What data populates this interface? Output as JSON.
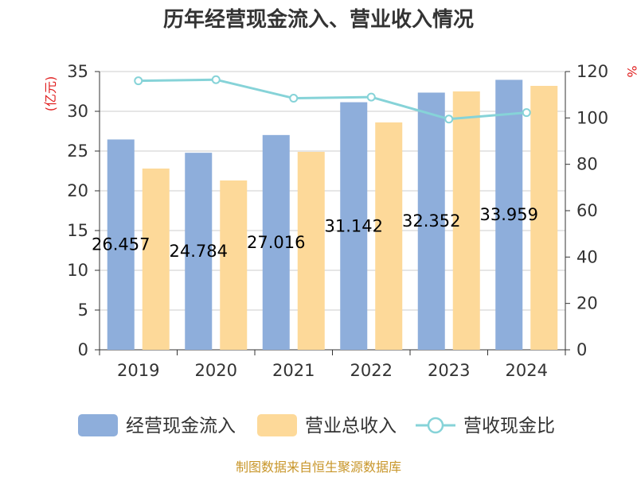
{
  "chart_data": {
    "type": "bar",
    "title": "历年经营现金流入、营业收入情况",
    "left_unit": "(亿元)",
    "right_unit": "%",
    "categories": [
      "2019",
      "2020",
      "2021",
      "2022",
      "2023",
      "2024"
    ],
    "series": [
      {
        "name": "经营现金流入",
        "type": "bar",
        "axis": "left",
        "color": "#8eaedb",
        "values": [
          26.457,
          24.784,
          27.016,
          31.142,
          32.352,
          33.959
        ],
        "labels": [
          "26.457",
          "24.784",
          "27.016",
          "31.142",
          "32.352",
          "33.959"
        ]
      },
      {
        "name": "营业总收入",
        "type": "bar",
        "axis": "left",
        "color": "#fdd999",
        "values": [
          22.8,
          21.3,
          24.9,
          28.6,
          32.5,
          33.2
        ]
      },
      {
        "name": "营收现金比",
        "type": "line",
        "axis": "right",
        "color": "#86d3d8",
        "values": [
          116.0,
          116.5,
          108.5,
          109.0,
          99.5,
          102.3
        ]
      }
    ],
    "y_left": {
      "min": 0,
      "max": 35,
      "ticks": [
        "0",
        "5",
        "10",
        "15",
        "20",
        "25",
        "30",
        "35"
      ]
    },
    "y_right": {
      "min": 0,
      "max": 120,
      "ticks": [
        "0",
        "20",
        "40",
        "60",
        "80",
        "100",
        "120"
      ]
    },
    "grid": true,
    "legend_position": "bottom"
  },
  "footer": {
    "source": "制图数据来自恒生聚源数据库"
  }
}
